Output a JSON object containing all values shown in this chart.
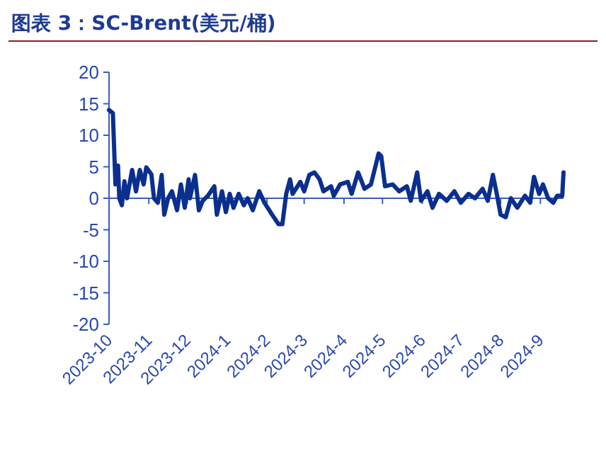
{
  "chart_data": {
    "type": "line",
    "title": "图表 3：SC-Brent(美元/桶)",
    "xlim": [
      "2023-10-01",
      "2024-09-19"
    ],
    "ref_lines": [
      {
        "axis": "y",
        "value": 0,
        "color": "#3a5cc0"
      }
    ],
    "ylim": [
      -20,
      20
    ],
    "yticks": [
      -20,
      -15,
      -10,
      -5,
      0,
      5,
      10,
      15,
      20
    ],
    "xticks": [
      {
        "value": "2023-10",
        "label": "2023-10"
      },
      {
        "value": "2023-11",
        "label": "2023-11"
      },
      {
        "value": "2023-12",
        "label": "2023-12"
      },
      {
        "value": "2024-01",
        "label": "2024-1"
      },
      {
        "value": "2024-02",
        "label": "2024-2"
      },
      {
        "value": "2024-03",
        "label": "2024-3"
      },
      {
        "value": "2024-04",
        "label": "2024-4"
      },
      {
        "value": "2024-05",
        "label": "2024-5"
      },
      {
        "value": "2024-06",
        "label": "2024-6"
      },
      {
        "value": "2024-07",
        "label": "2024-7"
      },
      {
        "value": "2024-08",
        "label": "2024-8"
      },
      {
        "value": "2024-09",
        "label": "2024-9"
      }
    ],
    "x": [
      "2023-10-01",
      "2023-10-04",
      "2023-10-06",
      "2023-10-08",
      "2023-10-09",
      "2023-10-11",
      "2023-10-13",
      "2023-10-15",
      "2023-10-19",
      "2023-10-22",
      "2023-10-25",
      "2023-10-28",
      "2023-10-30",
      "2023-11-03",
      "2023-11-05",
      "2023-11-08",
      "2023-11-11",
      "2023-11-13",
      "2023-11-16",
      "2023-11-19",
      "2023-11-23",
      "2023-11-26",
      "2023-11-29",
      "2023-12-02",
      "2023-12-03",
      "2023-12-07",
      "2023-12-10",
      "2023-12-13",
      "2023-12-17",
      "2023-12-22",
      "2023-12-24",
      "2023-12-28",
      "2023-12-31",
      "2024-01-03",
      "2024-01-06",
      "2024-01-10",
      "2024-01-14",
      "2024-01-17",
      "2024-01-21",
      "2024-01-26",
      "2024-01-30",
      "2024-02-05",
      "2024-02-10",
      "2024-02-13",
      "2024-02-16",
      "2024-02-19",
      "2024-02-21",
      "2024-02-27",
      "2024-03-01",
      "2024-03-05",
      "2024-03-09",
      "2024-03-13",
      "2024-03-16",
      "2024-03-22",
      "2024-03-24",
      "2024-03-29",
      "2024-04-04",
      "2024-04-07",
      "2024-04-12",
      "2024-04-17",
      "2024-04-22",
      "2024-04-28",
      "2024-04-30",
      "2024-05-03",
      "2024-05-09",
      "2024-05-14",
      "2024-05-20",
      "2024-05-23",
      "2024-05-28",
      "2024-05-31",
      "2024-06-05",
      "2024-06-09",
      "2024-06-14",
      "2024-06-20",
      "2024-06-26",
      "2024-07-01",
      "2024-07-07",
      "2024-07-12",
      "2024-07-18",
      "2024-07-22",
      "2024-07-26",
      "2024-07-29",
      "2024-08-01",
      "2024-08-05",
      "2024-08-09",
      "2024-08-14",
      "2024-08-20",
      "2024-08-24",
      "2024-08-27",
      "2024-08-31",
      "2024-09-03",
      "2024-09-07",
      "2024-09-11",
      "2024-09-14",
      "2024-09-18",
      "2024-09-19"
    ],
    "series": [
      {
        "color": "#0a2f8f",
        "values": [
          14.0,
          13.5,
          2.2,
          5.2,
          0,
          -1.1,
          2.7,
          0,
          4.5,
          1.1,
          4.5,
          2.2,
          4.9,
          3.8,
          0,
          -0.7,
          3.7,
          -2.6,
          0,
          1.1,
          -1.9,
          2.2,
          -1.5,
          3.0,
          0,
          3.7,
          -1.9,
          -0.4,
          0.4,
          1.9,
          -2.6,
          1.1,
          -2.2,
          0.7,
          -1.5,
          0.7,
          -1.1,
          0,
          -1.9,
          1.1,
          -0.7,
          -2.6,
          -4.1,
          -4.1,
          0.7,
          3.0,
          0.7,
          2.6,
          1.1,
          3.7,
          4.1,
          3.0,
          1.1,
          1.9,
          0.4,
          2.2,
          2.6,
          0.7,
          4.1,
          1.5,
          2.2,
          7.1,
          6.7,
          1.9,
          2.2,
          1.1,
          1.9,
          -0.4,
          4.1,
          -0.4,
          1.1,
          -1.5,
          0.7,
          -0.4,
          1.1,
          -0.7,
          0.7,
          0,
          1.5,
          -0.4,
          3.7,
          0.7,
          -2.6,
          -3.0,
          0,
          -1.5,
          0.4,
          -0.7,
          3.4,
          0.7,
          2.2,
          0,
          -0.7,
          0.4,
          0.4,
          4.1
        ]
      }
    ]
  }
}
